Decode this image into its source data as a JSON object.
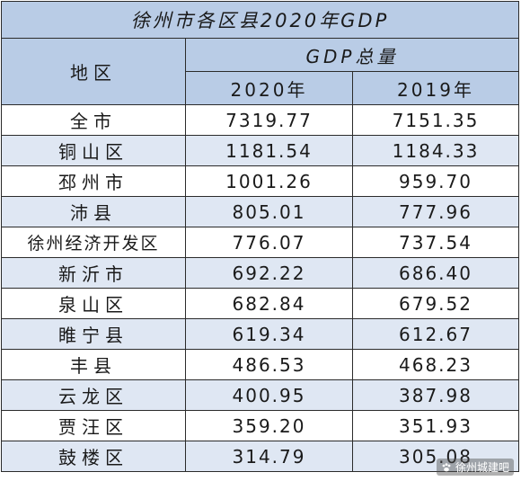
{
  "table": {
    "title": "徐州市各区县2020年GDP",
    "region_header": "地区",
    "gdp_header": "GDP总量",
    "year_headers": [
      "2020年",
      "2019年"
    ],
    "rows": [
      {
        "region": "全市",
        "y2020": "7319.77",
        "y2019": "7151.35"
      },
      {
        "region": "铜山区",
        "y2020": "1181.54",
        "y2019": "1184.33"
      },
      {
        "region": "邳州市",
        "y2020": "1001.26",
        "y2019": "959.70"
      },
      {
        "region": "沛县",
        "y2020": "805.01",
        "y2019": "777.96"
      },
      {
        "region": "徐州经济开发区",
        "y2020": "776.07",
        "y2019": "737.54"
      },
      {
        "region": "新沂市",
        "y2020": "692.22",
        "y2019": "686.40"
      },
      {
        "region": "泉山区",
        "y2020": "682.84",
        "y2019": "679.52"
      },
      {
        "region": "睢宁县",
        "y2020": "619.34",
        "y2019": "612.67"
      },
      {
        "region": "丰县",
        "y2020": "486.53",
        "y2019": "468.23"
      },
      {
        "region": "云龙区",
        "y2020": "400.95",
        "y2019": "387.98"
      },
      {
        "region": "贾汪区",
        "y2020": "359.20",
        "y2019": "351.93"
      },
      {
        "region": "鼓楼区",
        "y2020": "314.79",
        "y2019": "305.08"
      }
    ]
  },
  "watermark": {
    "text": "徐州城建吧",
    "icon": "paw-icon"
  }
}
